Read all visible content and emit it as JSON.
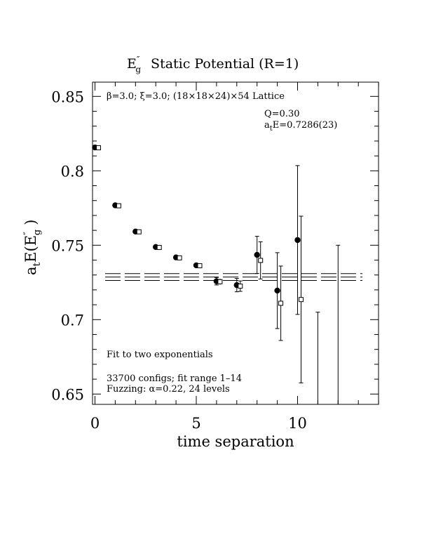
{
  "chart_data": {
    "type": "scatter",
    "title": "E″ Static Potential (R=1)",
    "title_parts": {
      "symbol": "E",
      "prime": "″",
      "sub": "g",
      "rest": "Static Potential (R=1)"
    },
    "ylabel_parts": {
      "a": "a",
      "t": "t",
      "E": "E(E",
      "prime": "″",
      "g": "g",
      "close": ")"
    },
    "xlabel": "time separation",
    "xlim": [
      0,
      14
    ],
    "ylim": [
      0.645,
      0.86
    ],
    "xticks": [
      0,
      5,
      10
    ],
    "xtick_labels": [
      "0",
      "5",
      "10"
    ],
    "yticks": [
      0.65,
      0.7,
      0.75,
      0.8,
      0.85
    ],
    "ytick_labels": [
      "0.65",
      "0.7",
      "0.75",
      "0.8",
      "0.85"
    ],
    "annotations": {
      "lattice": "β=3.0; ξ=3.0; (18×18×24)×54 Lattice",
      "q": "Q=0.30",
      "ate_prefix": "a",
      "ate_sub": "t",
      "ate_rest": "E=0.7286(23)",
      "fit_type": "Fit to two exponentials",
      "configs": "33700 configs; fit range 1–14",
      "fuzzing": "Fuzzing: α=0.22, 24 levels"
    },
    "fit_band": {
      "central": 0.7286,
      "error": 0.0023,
      "x_range": [
        0.5,
        13.2
      ]
    },
    "series": [
      {
        "marker": "filled-circle",
        "points": [
          {
            "x": 0,
            "y": 0.8157,
            "err": 0.0006
          },
          {
            "x": 1,
            "y": 0.7768,
            "err": 0.0008
          },
          {
            "x": 2,
            "y": 0.7592,
            "err": 0.001
          },
          {
            "x": 3,
            "y": 0.7488,
            "err": 0.001
          },
          {
            "x": 4,
            "y": 0.7418,
            "err": 0.0012
          },
          {
            "x": 5,
            "y": 0.7365,
            "err": 0.0015
          },
          {
            "x": 6,
            "y": 0.7258,
            "err": 0.0025
          },
          {
            "x": 7,
            "y": 0.7232,
            "err": 0.0045
          },
          {
            "x": 8,
            "y": 0.7435,
            "err": 0.0125
          },
          {
            "x": 9,
            "y": 0.7195,
            "err": 0.0255
          },
          {
            "x": 10,
            "y": 0.7535,
            "err": 0.05
          },
          {
            "x": 11,
            "y": 0.645,
            "err": 0.06
          },
          {
            "x": 12,
            "y": 0.645,
            "err": 0.105
          }
        ]
      },
      {
        "marker": "open-square",
        "points": [
          {
            "x": 0,
            "y": 0.8155,
            "err": 0.0006
          },
          {
            "x": 1,
            "y": 0.7765,
            "err": 0.0008
          },
          {
            "x": 2,
            "y": 0.759,
            "err": 0.001
          },
          {
            "x": 3,
            "y": 0.7485,
            "err": 0.001
          },
          {
            "x": 4,
            "y": 0.7415,
            "err": 0.0012
          },
          {
            "x": 5,
            "y": 0.7362,
            "err": 0.0015
          },
          {
            "x": 6,
            "y": 0.7255,
            "err": 0.002
          },
          {
            "x": 7,
            "y": 0.7225,
            "err": 0.0035
          },
          {
            "x": 8,
            "y": 0.7398,
            "err": 0.0125
          },
          {
            "x": 9,
            "y": 0.711,
            "err": 0.025
          },
          {
            "x": 10,
            "y": 0.7135,
            "err": 0.056
          }
        ]
      }
    ]
  }
}
